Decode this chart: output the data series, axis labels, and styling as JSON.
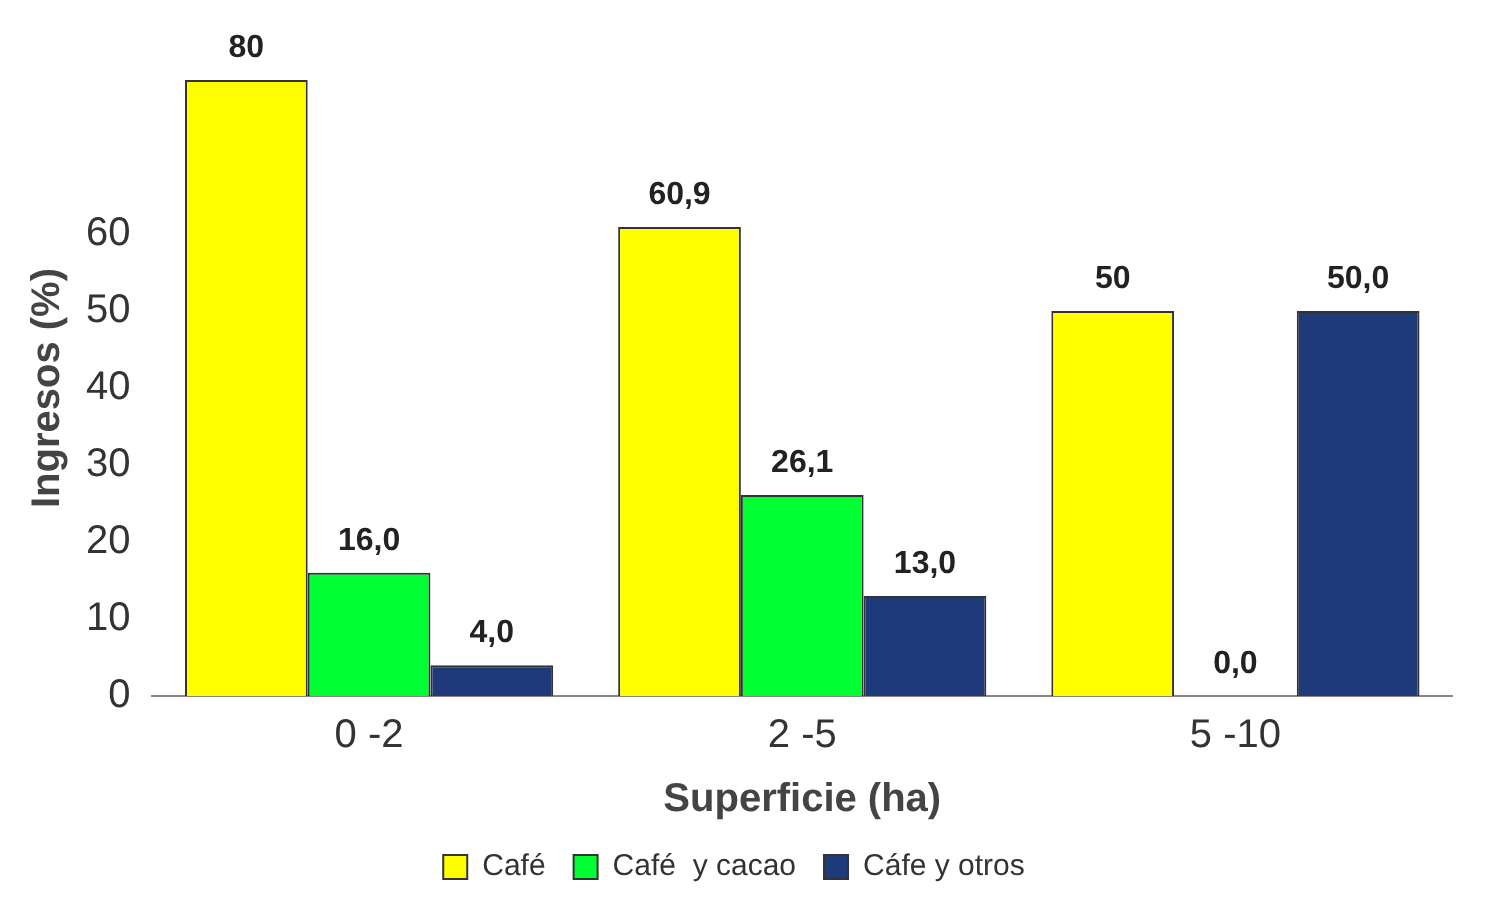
{
  "chart_data": {
    "type": "bar",
    "xlabel": "Superficie (ha)",
    "ylabel": "Ingresos (%)",
    "categories": [
      "0 -2",
      "2 -5",
      "5 -10"
    ],
    "series": [
      {
        "name": "Café",
        "color": "#ffff00",
        "values": [
          80,
          60.9,
          50
        ],
        "value_labels": [
          "80",
          "60,9",
          "50"
        ]
      },
      {
        "name": "Café  y cacao",
        "color": "#00ff33",
        "values": [
          16.0,
          26.1,
          0.0
        ],
        "value_labels": [
          "16,0",
          "26,1",
          "0,0"
        ]
      },
      {
        "name": "Cáfe y otros",
        "color": "#1f3a7a",
        "values": [
          4.0,
          13.0,
          50.0
        ],
        "value_labels": [
          "4,0",
          "13,0",
          "50,0"
        ]
      }
    ],
    "ylim": [
      0,
      80
    ],
    "yticks": [
      0,
      10,
      20,
      30,
      40,
      50,
      60
    ],
    "grid": false,
    "legend": "bottom"
  }
}
